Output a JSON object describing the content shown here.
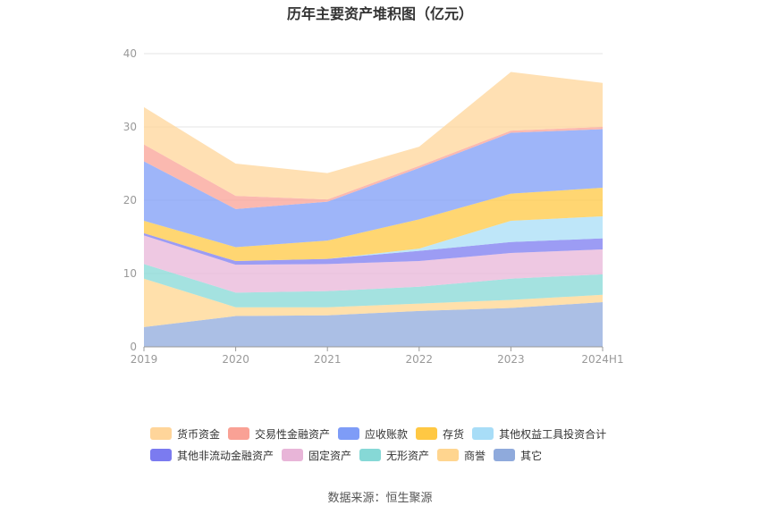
{
  "chart_data": {
    "type": "area",
    "stacked": true,
    "title": "历年主要资产堆积图（亿元）",
    "categories": [
      "2019",
      "2020",
      "2021",
      "2022",
      "2023",
      "2024H1"
    ],
    "ylim": [
      0,
      40
    ],
    "yticks": [
      0,
      10,
      20,
      30,
      40
    ],
    "grid": true,
    "legend_position": "bottom",
    "series": [
      {
        "name": "其它",
        "color": "#8FAADC",
        "values": [
          2.7,
          4.2,
          4.3,
          4.9,
          5.3,
          6.1
        ]
      },
      {
        "name": "商誉",
        "color": "#FFD58F",
        "values": [
          6.6,
          1.2,
          1.1,
          1.0,
          1.1,
          1.0
        ]
      },
      {
        "name": "无形资产",
        "color": "#86D8D6",
        "values": [
          2.0,
          2.0,
          2.2,
          2.3,
          2.9,
          2.8
        ]
      },
      {
        "name": "固定资产",
        "color": "#E8B5D8",
        "values": [
          3.9,
          3.8,
          3.7,
          3.5,
          3.5,
          3.4
        ]
      },
      {
        "name": "其他非流动金融资产",
        "color": "#7B7BF0",
        "values": [
          0.3,
          0.5,
          0.7,
          1.4,
          1.5,
          1.5
        ]
      },
      {
        "name": "其他权益工具投资合计",
        "color": "#A8DDF7",
        "values": [
          0,
          0,
          0,
          0.3,
          2.9,
          3.0
        ]
      },
      {
        "name": "存货",
        "color": "#FFC843",
        "values": [
          1.7,
          1.9,
          2.5,
          4.0,
          3.7,
          3.9
        ]
      },
      {
        "name": "应收账款",
        "color": "#7E9CF7",
        "values": [
          8.1,
          5.2,
          5.3,
          7.0,
          8.3,
          8.0
        ]
      },
      {
        "name": "交易性金融资产",
        "color": "#F9A195",
        "values": [
          2.3,
          1.8,
          0.3,
          0.3,
          0.3,
          0.3
        ]
      },
      {
        "name": "货币资金",
        "color": "#FFD59A",
        "values": [
          5.1,
          4.4,
          3.6,
          2.6,
          8.0,
          6.0
        ]
      }
    ]
  },
  "legend": {
    "rows": [
      [
        "货币资金",
        "交易性金融资产",
        "应收账款",
        "存货",
        "其他权益工具投资合计"
      ],
      [
        "其他非流动金融资产",
        "固定资产",
        "无形资产",
        "商誉",
        "其它"
      ]
    ]
  },
  "footer": {
    "source": "数据来源：恒生聚源"
  }
}
